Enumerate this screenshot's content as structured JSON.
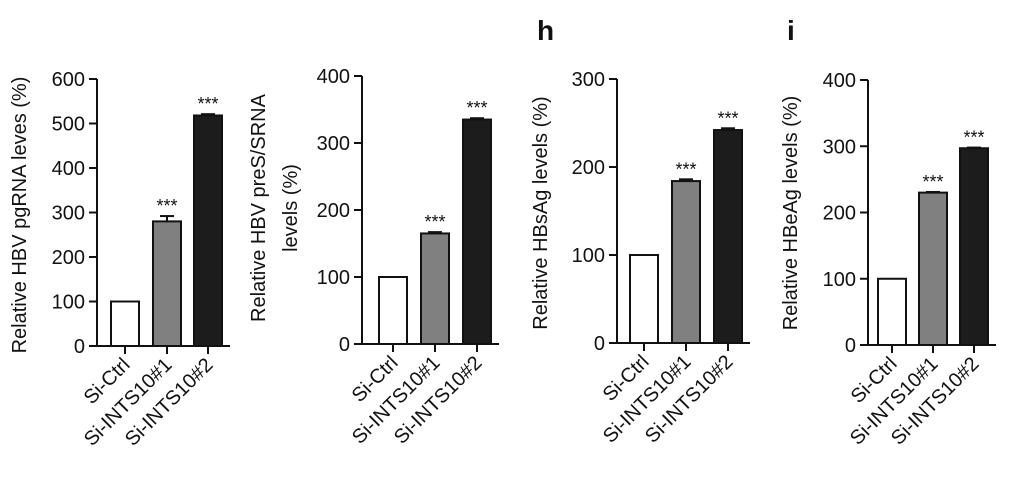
{
  "chart_data": [
    {
      "type": "bar",
      "ylabel": "Relative HBV pgRNA leves (%)",
      "categories": [
        "Si-Ctrl",
        "Si-INTS10#1",
        "Si-INTS10#2"
      ],
      "values": [
        100,
        280,
        518
      ],
      "errors": [
        0,
        12,
        3
      ],
      "annotations": [
        null,
        "***",
        "***"
      ],
      "colors": [
        "#ffffff",
        "#808080",
        "#1c1c1c"
      ],
      "ylim": [
        0,
        600
      ],
      "yticks": [
        0,
        100,
        200,
        300,
        400,
        500,
        600
      ]
    },
    {
      "type": "bar",
      "ylabel": [
        "Relative HBV preS/SRNA",
        "levels (%)"
      ],
      "categories": [
        "Si-Ctrl",
        "Si-INTS10#1",
        "Si-INTS10#2"
      ],
      "values": [
        100,
        165,
        335
      ],
      "errors": [
        0,
        2,
        2
      ],
      "annotations": [
        null,
        "***",
        "***"
      ],
      "colors": [
        "#ffffff",
        "#808080",
        "#1c1c1c"
      ],
      "ylim": [
        0,
        400
      ],
      "yticks": [
        0,
        100,
        200,
        300,
        400
      ]
    },
    {
      "type": "bar",
      "panel": "h",
      "ylabel": "Relative HBsAg levels (%)",
      "categories": [
        "Si-Ctrl",
        "Si-INTS10#1",
        "Si-INTS10#2"
      ],
      "values": [
        100,
        184,
        242
      ],
      "errors": [
        0,
        2,
        2
      ],
      "annotations": [
        null,
        "***",
        "***"
      ],
      "colors": [
        "#ffffff",
        "#808080",
        "#1c1c1c"
      ],
      "ylim": [
        0,
        300
      ],
      "yticks": [
        0,
        100,
        200,
        300
      ]
    },
    {
      "type": "bar",
      "panel": "i",
      "ylabel": "Relative HBeAg levels (%)",
      "categories": [
        "Si-Ctrl",
        "Si-INTS10#1",
        "Si-INTS10#2"
      ],
      "values": [
        100,
        230,
        297
      ],
      "errors": [
        0,
        1,
        1
      ],
      "annotations": [
        null,
        "***",
        "***"
      ],
      "colors": [
        "#ffffff",
        "#808080",
        "#1c1c1c"
      ],
      "ylim": [
        0,
        400
      ],
      "yticks": [
        0,
        100,
        200,
        300,
        400
      ]
    }
  ]
}
